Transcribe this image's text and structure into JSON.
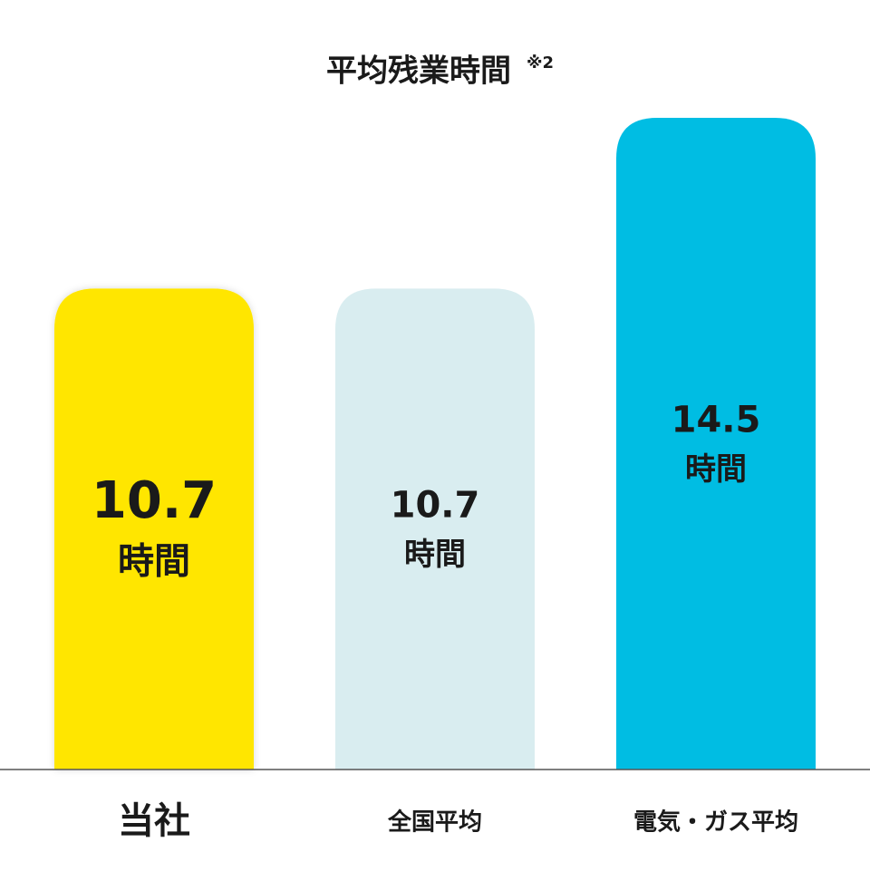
{
  "chart_data": {
    "type": "bar",
    "title": "平均残業時間",
    "title_note": "※2",
    "categories": [
      "当社",
      "全国平均",
      "電気・ガス平均"
    ],
    "values": [
      10.7,
      10.7,
      14.5
    ],
    "unit": "時間",
    "colors": [
      "#ffe600",
      "#d9edf0",
      "#00bde3"
    ],
    "label_colors": [
      "#1a1a1a",
      "#1a1a1a",
      "#ffffff"
    ]
  }
}
